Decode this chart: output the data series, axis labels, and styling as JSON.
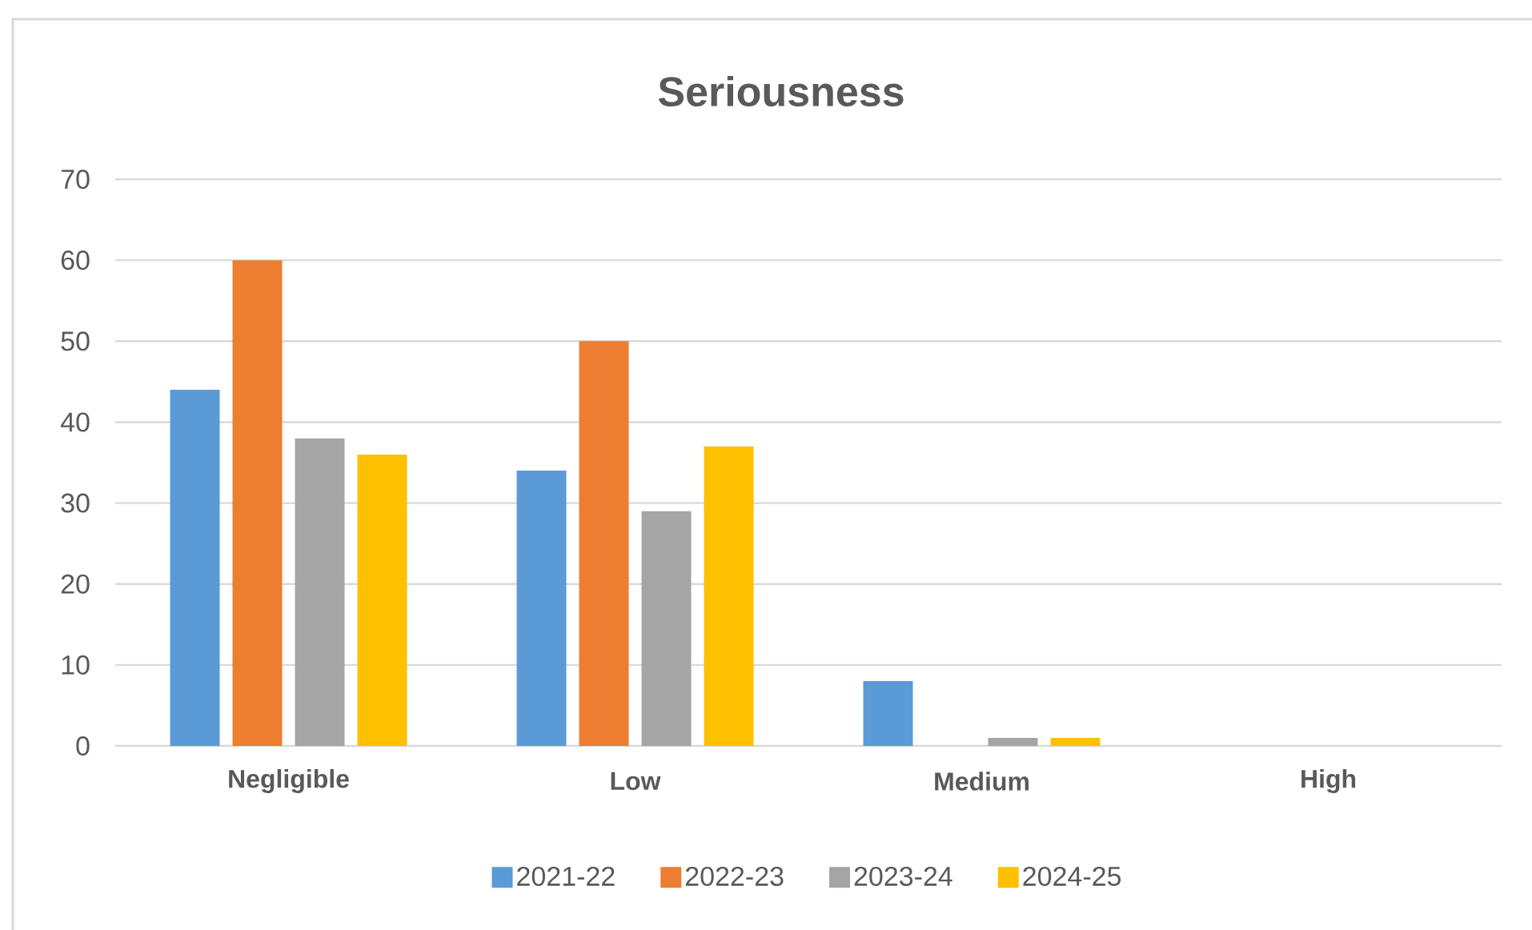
{
  "chart_data": {
    "type": "bar",
    "title": "Seriousness",
    "categories": [
      "Negligible",
      "Low",
      "Medium",
      "High"
    ],
    "series": [
      {
        "name": "2021-22",
        "color": "#5b9bd5",
        "values": [
          44,
          34,
          8,
          0
        ]
      },
      {
        "name": "2022-23",
        "color": "#ed7d31",
        "values": [
          60,
          50,
          0,
          0
        ]
      },
      {
        "name": "2023-24",
        "color": "#a5a5a5",
        "values": [
          38,
          29,
          1,
          0
        ]
      },
      {
        "name": "2024-25",
        "color": "#ffc000",
        "values": [
          36,
          37,
          1,
          0
        ]
      }
    ],
    "ylim": [
      0,
      70
    ],
    "yticks": [
      0,
      10,
      20,
      30,
      40,
      50,
      60,
      70
    ],
    "grid": "y",
    "legend": "bottom"
  }
}
